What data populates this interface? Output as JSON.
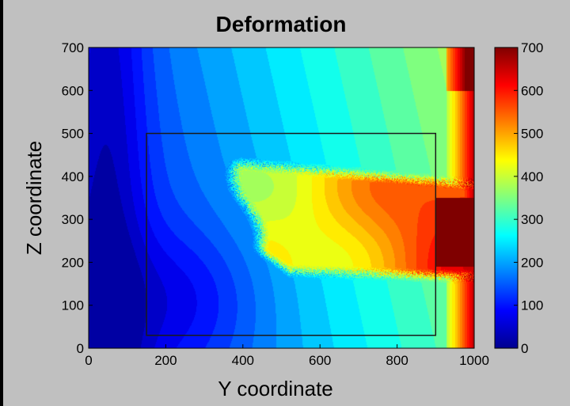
{
  "chart_data": {
    "type": "heatmap",
    "title": "Deformation",
    "xlabel": "Y coordinate",
    "ylabel": "Z coordinate",
    "xlim": [
      0,
      1000
    ],
    "ylim": [
      0,
      700
    ],
    "xticks": [
      0,
      200,
      400,
      600,
      800,
      1000
    ],
    "yticks": [
      0,
      100,
      200,
      300,
      400,
      500,
      600,
      700
    ],
    "colorbar": {
      "range": [
        0,
        700
      ],
      "ticks": [
        0,
        100,
        200,
        300,
        400,
        500,
        600,
        700
      ],
      "colormap": "jet"
    },
    "rectangle": {
      "x": [
        150,
        900
      ],
      "z": [
        30,
        500
      ]
    },
    "field_description": "deformation field: low (blue) at left/bottom, high band (orange/red) from Y≈420 to 1000 at Z≈180–400, max (≈700) at right edge Z≈200–350"
  },
  "colors": {
    "background": "#c0c0c0",
    "frame": "#000000",
    "rectangle": "#1a1a1a"
  }
}
